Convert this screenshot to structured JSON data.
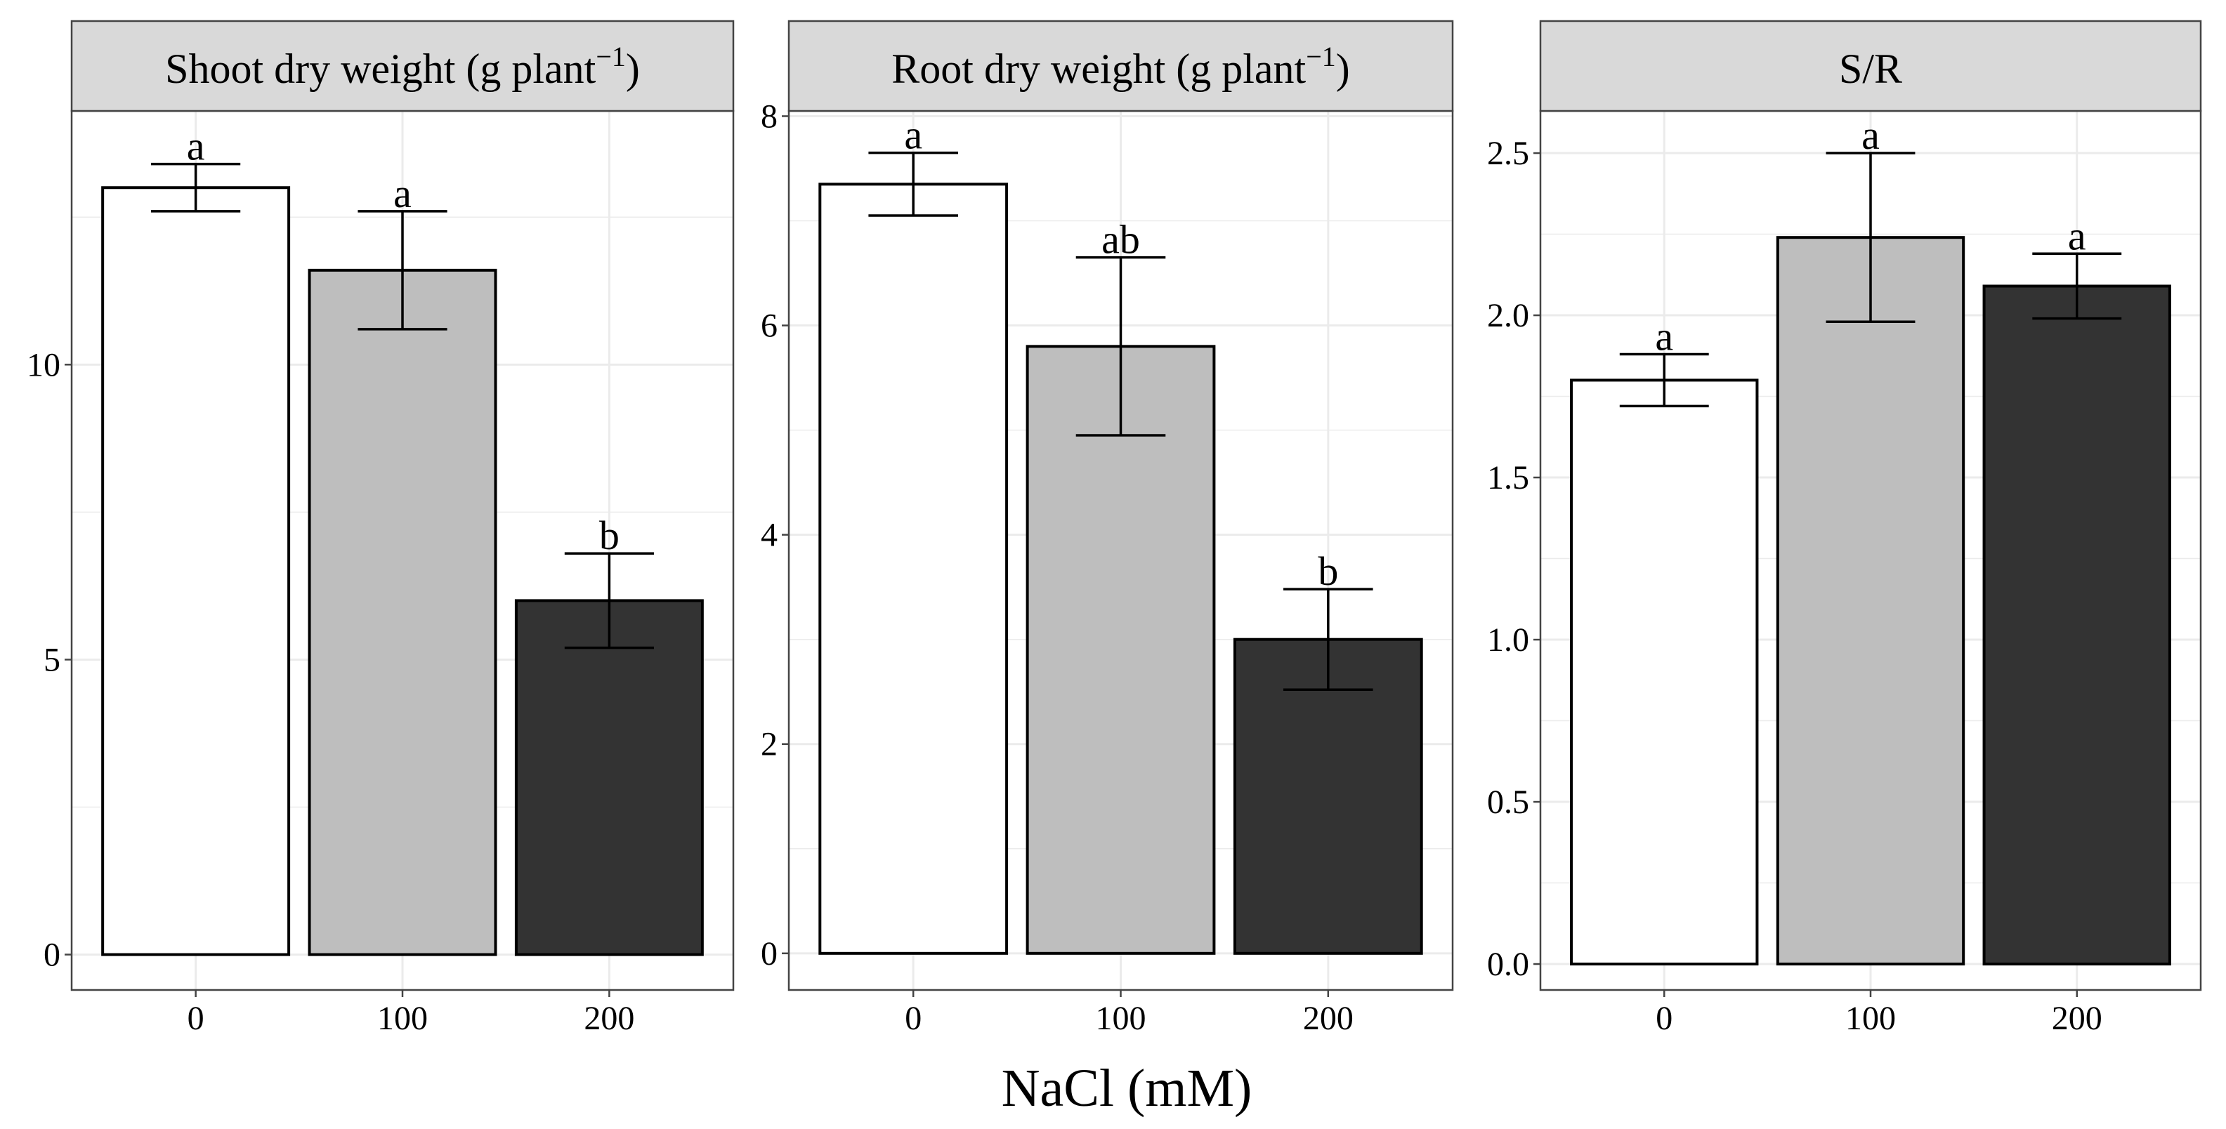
{
  "colors": {
    "control": "#ffffff",
    "nacl_100": "#bebebe",
    "nacl_200": "#333333",
    "strip_bg": "#d9d9d9",
    "grid": "#ebebeb"
  },
  "shared_xlabel": "NaCl (mM)",
  "chart_data": [
    {
      "type": "bar",
      "title_main": "Shoot dry weight (g plant",
      "title_sup": "−1",
      "title_close": ")",
      "categories": [
        "0",
        "100",
        "200"
      ],
      "values": [
        13.0,
        11.6,
        6.0
      ],
      "errors": [
        0.4,
        1.0,
        0.8
      ],
      "significance": [
        "a",
        "a",
        "b"
      ],
      "ylim": [
        -0.6,
        14.3
      ],
      "yticks": [
        0,
        5,
        10
      ],
      "ytick_labels": [
        "0",
        "5",
        "10"
      ],
      "grid": true
    },
    {
      "type": "bar",
      "title_main": "Root dry weight (g plant",
      "title_sup": "−1",
      "title_close": ")",
      "categories": [
        "0",
        "100",
        "200"
      ],
      "values": [
        7.35,
        5.8,
        3.0
      ],
      "errors": [
        0.3,
        0.85,
        0.48
      ],
      "significance": [
        "a",
        "ab",
        "b"
      ],
      "ylim": [
        -0.35,
        8.05
      ],
      "yticks": [
        0,
        2,
        4,
        6,
        8
      ],
      "ytick_labels": [
        "0",
        "2",
        "4",
        "6",
        "8"
      ],
      "grid": true
    },
    {
      "type": "bar",
      "title_main": "S/R",
      "title_sup": "",
      "title_close": "",
      "categories": [
        "0",
        "100",
        "200"
      ],
      "values": [
        1.8,
        2.24,
        2.09
      ],
      "errors": [
        0.08,
        0.26,
        0.1
      ],
      "significance": [
        "a",
        "a",
        "a"
      ],
      "ylim": [
        -0.08,
        2.63
      ],
      "yticks": [
        0.0,
        0.5,
        1.0,
        1.5,
        2.0,
        2.5
      ],
      "ytick_labels": [
        "0.0",
        "0.5",
        "1.0",
        "1.5",
        "2.0",
        "2.5"
      ],
      "grid": true
    }
  ]
}
